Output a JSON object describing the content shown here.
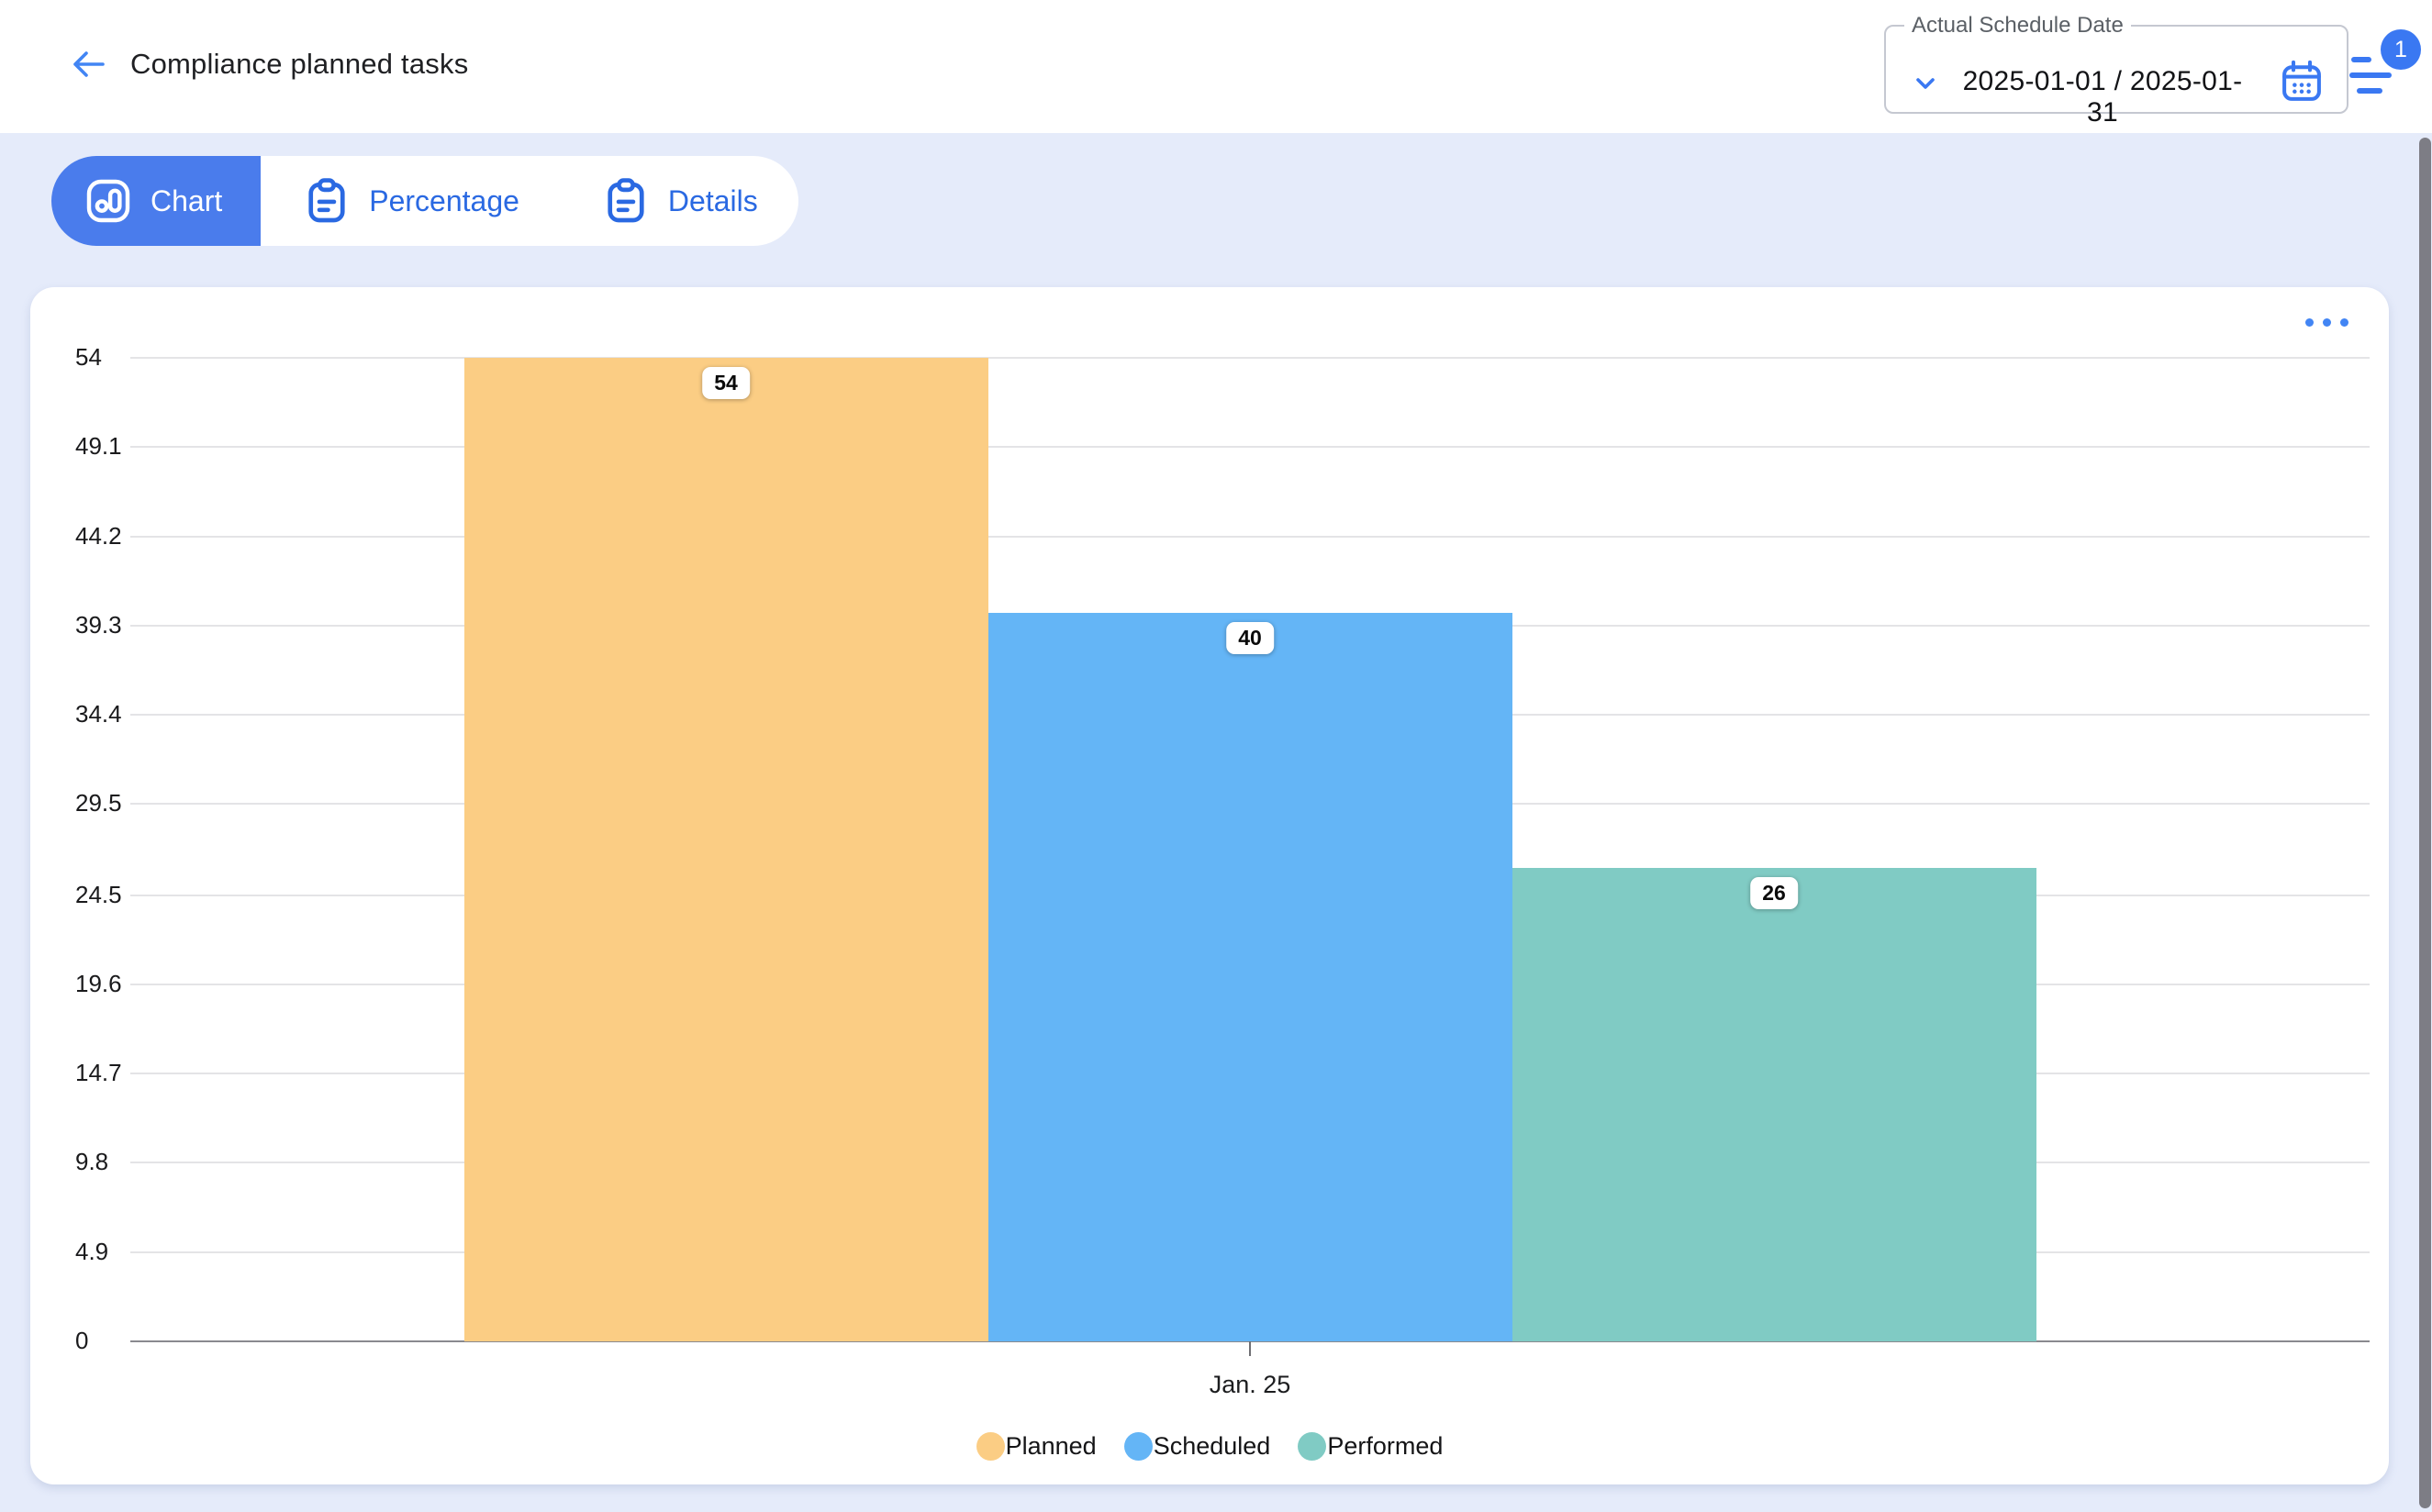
{
  "header": {
    "title": "Compliance planned tasks",
    "date_filter": {
      "label": "Actual Schedule Date",
      "value": "2025-01-01 / 2025-01-31",
      "filter_badge_count": "1"
    }
  },
  "tabs": [
    {
      "label": "Chart",
      "icon": "bar-chart-icon",
      "active": true
    },
    {
      "label": "Percentage",
      "icon": "clipboard-icon",
      "active": false
    },
    {
      "label": "Details",
      "icon": "clipboard-icon",
      "active": false
    }
  ],
  "chart_data": {
    "type": "bar",
    "title": "",
    "categories": [
      "Jan. 25"
    ],
    "series": [
      {
        "name": "Planned",
        "values": [
          54
        ],
        "color": "#FBCD84"
      },
      {
        "name": "Scheduled",
        "values": [
          40
        ],
        "color": "#64B5F6"
      },
      {
        "name": "Performed",
        "values": [
          26
        ],
        "color": "#80CBC4"
      }
    ],
    "y_ticks": [
      0,
      4.9,
      9.8,
      14.7,
      19.6,
      24.5,
      29.5,
      34.4,
      39.3,
      44.2,
      49.1,
      54
    ],
    "ylim": [
      0,
      54
    ],
    "grid": true,
    "legend_position": "bottom",
    "bar_value_labels": [
      "54",
      "40",
      "26"
    ]
  },
  "colors": {
    "page_background": "#E5EBFA",
    "accent_blue": "#4A7CEC",
    "icon_blue": "#3A78F2",
    "tab_text_blue": "#2A69E2",
    "gridline": "#E4E4E6",
    "axis_line": "#8A8A8F",
    "scrollbar": "#7D7D85"
  }
}
